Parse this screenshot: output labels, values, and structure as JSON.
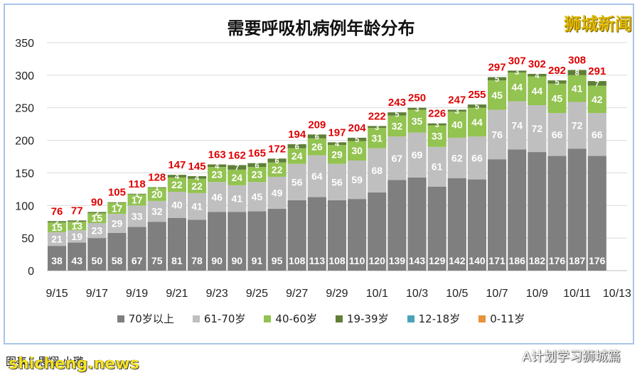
{
  "title": "需要呼吸机病例年龄分布",
  "brand": "狮城新闻",
  "credit": "图表：思翔·小璐",
  "watermark": "shicheng.news",
  "account": "A计划学习狮城篇",
  "icons": {
    "account_icon": "wechat-icon"
  },
  "colors": {
    "70岁以上": "#7f7f7f",
    "61-70岁": "#bfbfbf",
    "40-60岁": "#93c350",
    "19-39岁": "#5f7f37",
    "12-18岁": "#4aa4b8",
    "0-11岁": "#e8923a",
    "total": "#e00000",
    "frame": "#a9c4e8"
  },
  "legend": [
    "70岁以上",
    "61-70岁",
    "40-60岁",
    "19-39岁",
    "12-18岁",
    "0-11岁"
  ],
  "chart_data": {
    "type": "bar",
    "stacked": true,
    "title": "需要呼吸机病例年龄分布",
    "ylim": [
      0,
      350
    ],
    "yticks": [
      0,
      50,
      100,
      150,
      200,
      250,
      300,
      350
    ],
    "grid": true,
    "legend_position": "bottom",
    "x_tick_labels": [
      "9/15",
      "9/17",
      "9/19",
      "9/21",
      "9/23",
      "9/25",
      "9/27",
      "9/29",
      "10/1",
      "10/3",
      "10/5",
      "10/7",
      "10/9",
      "10/11",
      "10/13"
    ],
    "categories": [
      "9/15",
      "9/16",
      "9/17",
      "9/18",
      "9/19",
      "9/20",
      "9/21",
      "9/22",
      "9/23",
      "9/24",
      "9/25",
      "9/26",
      "9/27",
      "9/28",
      "9/29",
      "9/30",
      "10/1",
      "10/2",
      "10/3",
      "10/4",
      "10/5",
      "10/6",
      "10/7",
      "10/8",
      "10/9",
      "10/10",
      "10/11",
      "10/12",
      "10/13"
    ],
    "series": [
      {
        "name": "70岁以上",
        "values": [
          38,
          43,
          50,
          58,
          67,
          75,
          81,
          78,
          90,
          90,
          91,
          95,
          108,
          113,
          108,
          110,
          120,
          139,
          143,
          129,
          142,
          140,
          171,
          186,
          182,
          176,
          187,
          176,
          null
        ]
      },
      {
        "name": "61-70岁",
        "values": [
          21,
          19,
          23,
          29,
          33,
          32,
          40,
          41,
          46,
          41,
          45,
          49,
          56,
          64,
          56,
          59,
          68,
          67,
          69,
          61,
          62,
          66,
          76,
          74,
          72,
          66,
          72,
          66,
          null
        ]
      },
      {
        "name": "40-60岁",
        "values": [
          15,
          13,
          15,
          17,
          17,
          20,
          22,
          22,
          23,
          24,
          23,
          22,
          24,
          26,
          29,
          30,
          31,
          32,
          35,
          33,
          40,
          44,
          45,
          44,
          44,
          45,
          41,
          42,
          null
        ]
      },
      {
        "name": "19-39岁",
        "values": [
          2,
          2,
          2,
          1,
          1,
          1,
          4,
          4,
          4,
          7,
          6,
          6,
          6,
          6,
          4,
          5,
          3,
          5,
          3,
          3,
          3,
          5,
          5,
          3,
          4,
          5,
          8,
          7,
          null
        ]
      },
      {
        "name": "12-18岁",
        "values": [
          0,
          0,
          0,
          0,
          0,
          0,
          0,
          0,
          0,
          0,
          0,
          0,
          0,
          0,
          0,
          0,
          0,
          0,
          0,
          0,
          0,
          0,
          0,
          0,
          0,
          0,
          0,
          0,
          null
        ]
      },
      {
        "name": "0-11岁",
        "values": [
          0,
          0,
          0,
          0,
          0,
          0,
          0,
          0,
          0,
          0,
          0,
          0,
          0,
          0,
          0,
          0,
          0,
          0,
          0,
          0,
          0,
          0,
          0,
          0,
          0,
          0,
          0,
          0,
          null
        ]
      }
    ],
    "totals": [
      76,
      77,
      90,
      105,
      118,
      128,
      147,
      145,
      163,
      162,
      165,
      172,
      194,
      209,
      197,
      204,
      222,
      243,
      250,
      226,
      247,
      255,
      297,
      307,
      302,
      292,
      308,
      291,
      null
    ]
  }
}
